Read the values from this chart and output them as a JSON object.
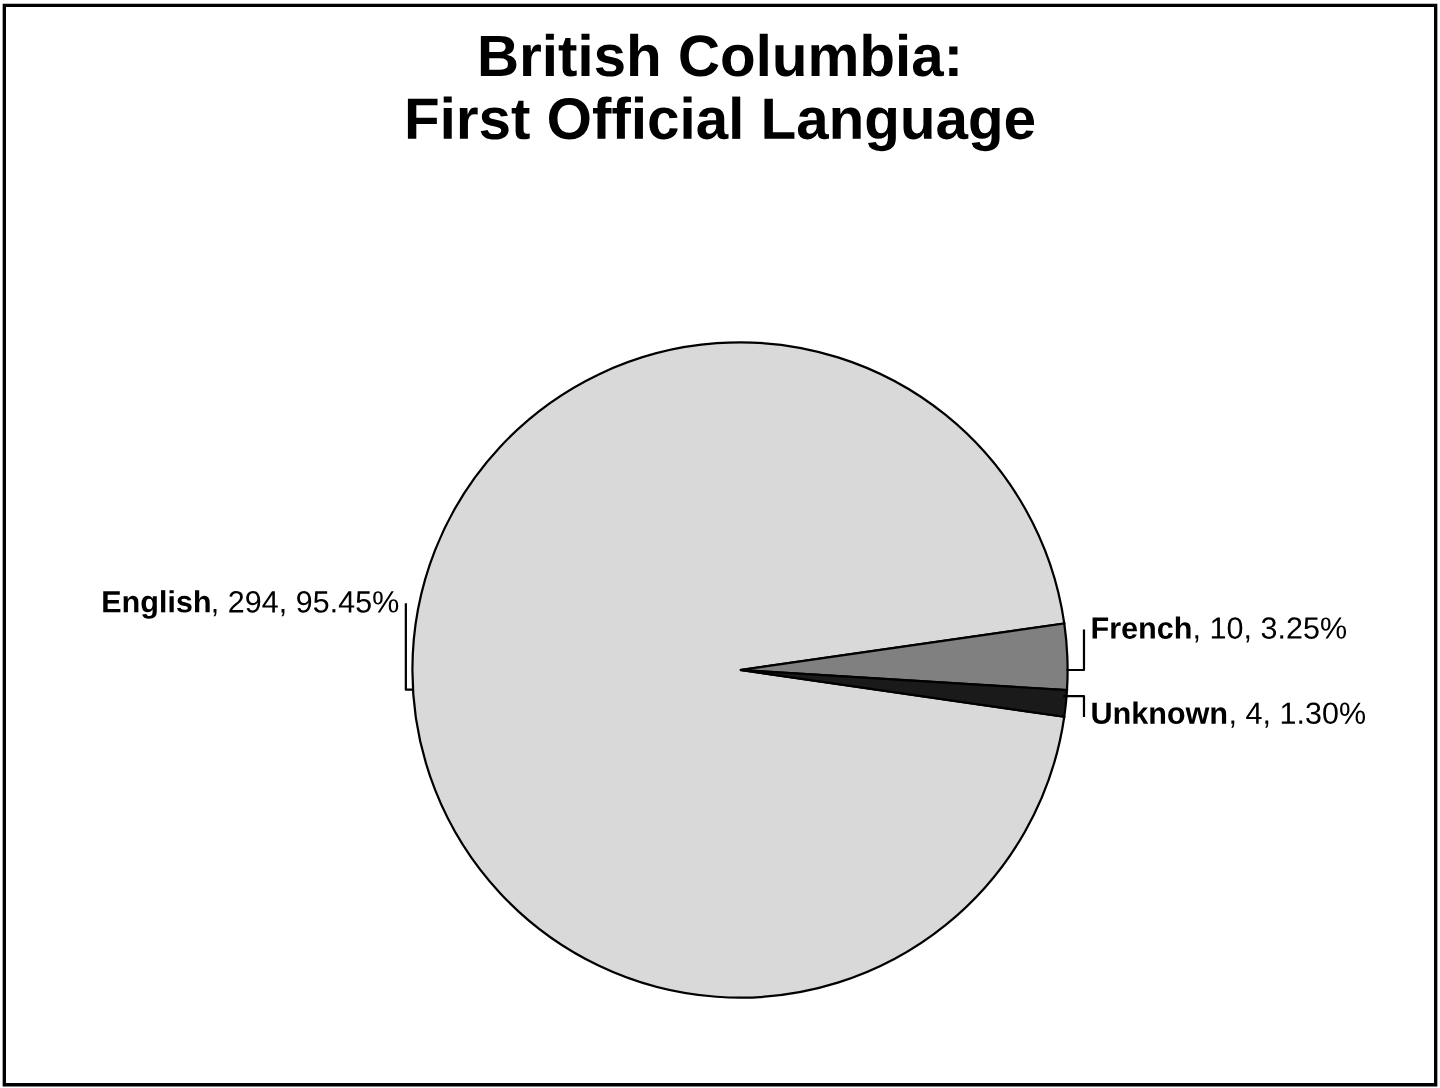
{
  "chart_data": {
    "type": "pie",
    "title": "British Columbia:\nFirst Official Language",
    "categories": [
      "English",
      "French",
      "Unknown"
    ],
    "values": [
      294,
      10,
      4
    ],
    "value_labels": [
      ", 294, 95.45%",
      ", 10, 3.25%",
      ", 4, 1.30%"
    ],
    "colors": [
      "#d9d9d9",
      "#808080",
      "#1a1a1a"
    ],
    "legend": false
  }
}
